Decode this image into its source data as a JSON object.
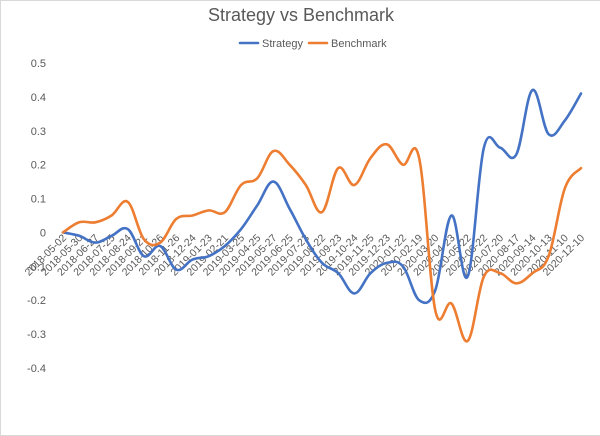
{
  "chart_data": {
    "type": "line",
    "title": "Strategy vs Benchmark",
    "legend_position": "top-center",
    "grid": false,
    "ylim": [
      -0.4,
      0.5
    ],
    "yticks": [
      -0.4,
      -0.3,
      -0.2,
      -0.1,
      0,
      0.1,
      0.2,
      0.3,
      0.4,
      0.5
    ],
    "ytick_labels": [
      "-0.4",
      "-0.3",
      "-0.2",
      "-0.1",
      "0",
      "0.1",
      "0.2",
      "0.3",
      "0.4",
      "0.5"
    ],
    "categories": [
      "2018-05-02",
      "2018-05-30",
      "2018-06-27",
      "2018-07-25",
      "2018-08-24",
      "2018-09-21",
      "2018-10-26",
      "2018-11-26",
      "2018-12-24",
      "2019-01-23",
      "2019-02-21",
      "2019-03-25",
      "2019-04-25",
      "2019-05-27",
      "2019-06-25",
      "2019-07-23",
      "2019-08-22",
      "2019-09-23",
      "2019-10-24",
      "2019-11-25",
      "2019-12-23",
      "2020-01-22",
      "2020-02-19",
      "2020-03-20",
      "2020-04-23",
      "2020-05-22",
      "2020-06-22",
      "2020-07-20",
      "2020-08-17",
      "2020-09-14",
      "2020-10-13",
      "2020-11-10",
      "2020-12-10"
    ],
    "series": [
      {
        "name": "Strategy",
        "color": "#4472c4",
        "values": [
          0,
          -0.01,
          -0.03,
          -0.01,
          0.01,
          -0.07,
          -0.04,
          -0.11,
          -0.08,
          -0.07,
          -0.04,
          0.01,
          0.08,
          0.15,
          0.07,
          -0.02,
          -0.09,
          -0.12,
          -0.18,
          -0.12,
          -0.09,
          -0.1,
          -0.2,
          -0.17,
          0.05,
          -0.13,
          0.25,
          0.25,
          0.23,
          0.42,
          0.29,
          0.33,
          0.41
        ]
      },
      {
        "name": "Benchmark",
        "color": "#ed7d31",
        "values": [
          0,
          0.03,
          0.03,
          0.05,
          0.09,
          -0.02,
          -0.03,
          0.04,
          0.05,
          0.065,
          0.06,
          0.14,
          0.16,
          0.24,
          0.2,
          0.14,
          0.06,
          0.19,
          0.14,
          0.22,
          0.26,
          0.2,
          0.22,
          -0.23,
          -0.21,
          -0.32,
          -0.13,
          -0.12,
          -0.15,
          -0.12,
          -0.07,
          0.13,
          0.19
        ]
      }
    ]
  }
}
